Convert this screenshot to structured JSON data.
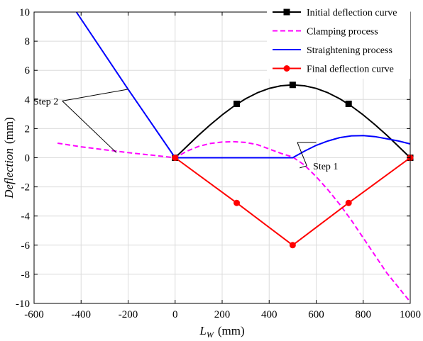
{
  "chart_data": {
    "type": "line",
    "xlabel_main": "L",
    "xlabel_sub": "W",
    "xlabel_unit": "(mm)",
    "ylabel_main": "Deflection",
    "ylabel_unit": "(mm)",
    "xlim": [
      -600,
      1000
    ],
    "ylim": [
      -10,
      10
    ],
    "xticks": [
      -600,
      -400,
      -200,
      0,
      200,
      400,
      600,
      800,
      1000
    ],
    "yticks": [
      -10,
      -8,
      -6,
      -4,
      -2,
      0,
      2,
      4,
      6,
      8,
      10
    ],
    "xtick_labels": [
      "-600",
      "-400",
      "-200",
      "0",
      "200",
      "400",
      "600",
      "800",
      "1000"
    ],
    "ytick_labels": [
      "-10",
      "-8",
      "-6",
      "-4",
      "-2",
      "0",
      "2",
      "4",
      "6",
      "8",
      "10"
    ],
    "grid": true,
    "legend_position": "top-right",
    "series": [
      {
        "name": "Initial deflection curve",
        "color": "#000000",
        "style": "solid",
        "marker": "square",
        "x": [
          0,
          50,
          100,
          150,
          200,
          250,
          300,
          350,
          400,
          450,
          500,
          550,
          600,
          650,
          700,
          750,
          800,
          850,
          900,
          950,
          1000
        ],
        "y": [
          0,
          0.78,
          1.55,
          2.27,
          2.94,
          3.54,
          4.05,
          4.46,
          4.76,
          4.94,
          5.0,
          4.94,
          4.76,
          4.46,
          4.05,
          3.54,
          2.94,
          2.27,
          1.55,
          0.78,
          0
        ],
        "markers_x": [
          0,
          262,
          500,
          738,
          1000
        ],
        "markers_y": [
          0,
          3.7,
          5.0,
          3.7,
          0
        ]
      },
      {
        "name": "Clamping process",
        "color": "#ff00ff",
        "style": "dashed",
        "marker": "none",
        "x": [
          -500,
          -400,
          -300,
          -200,
          -100,
          0,
          50,
          100,
          150,
          200,
          250,
          300,
          350,
          400,
          450,
          500,
          550,
          600,
          650,
          700,
          750,
          800,
          850,
          900,
          950,
          1000
        ],
        "y": [
          1.0,
          0.75,
          0.55,
          0.35,
          0.18,
          0,
          0.45,
          0.78,
          0.98,
          1.08,
          1.1,
          1.05,
          0.9,
          0.6,
          0.3,
          0.05,
          -0.5,
          -1.3,
          -2.2,
          -3.2,
          -4.3,
          -5.5,
          -6.7,
          -7.9,
          -8.9,
          -9.9
        ]
      },
      {
        "name": "Straightening process",
        "color": "#0000ff",
        "style": "solid",
        "marker": "none",
        "x": [
          -420,
          -200,
          0,
          500,
          550,
          600,
          650,
          700,
          750,
          800,
          850,
          900,
          950,
          1000
        ],
        "y": [
          10,
          4.7,
          0,
          0,
          0.45,
          0.85,
          1.15,
          1.38,
          1.5,
          1.52,
          1.45,
          1.3,
          1.15,
          0.95
        ]
      },
      {
        "name": "Final deflection curve",
        "color": "#ff0000",
        "style": "solid",
        "marker": "circle",
        "x": [
          0,
          262,
          500,
          738,
          1000
        ],
        "y": [
          0,
          -3.1,
          -6.0,
          -3.1,
          0
        ],
        "markers_x": [
          0,
          262,
          500,
          738,
          1000
        ],
        "markers_y": [
          0,
          -3.1,
          -6.0,
          -3.1,
          0
        ]
      }
    ],
    "annotations": [
      {
        "text": "Step 1",
        "text_x": 640,
        "text_y": -0.55,
        "arrows": [
          {
            "from": [
              560,
              -0.55
            ],
            "to": [
              530,
              -0.7
            ]
          },
          {
            "from": [
              560,
              -0.55
            ],
            "to": [
              520,
              1.05
            ]
          },
          {
            "line": [
              [
                520,
                1.05
              ],
              [
                600,
                1.05
              ]
            ]
          }
        ]
      },
      {
        "text": "Step 2",
        "text_x": -550,
        "text_y": 3.9,
        "arrows": [
          {
            "from": [
              -480,
              3.9
            ],
            "to": [
              -200,
              4.7
            ]
          },
          {
            "from": [
              -480,
              3.9
            ],
            "to": [
              -250,
              0.35
            ]
          }
        ]
      }
    ]
  }
}
